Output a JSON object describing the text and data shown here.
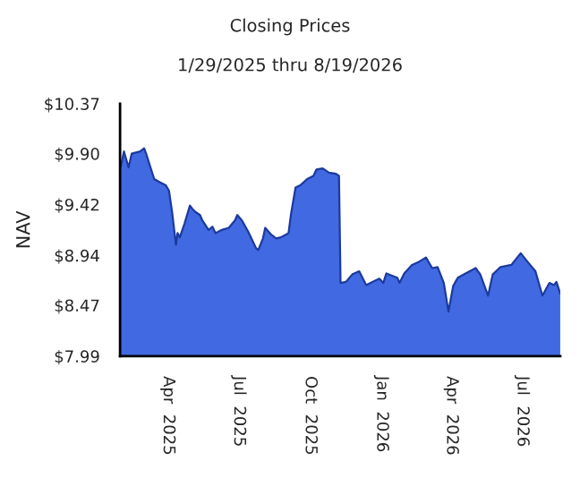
{
  "chart_data": {
    "type": "area",
    "title": "Closing Prices",
    "subtitle": "1/29/2025 thru 8/19/2026",
    "ylabel": "NAV",
    "x": [
      "2025-01-30",
      "2025-02-03",
      "2025-02-09",
      "2025-02-13",
      "2025-02-24",
      "2025-03-01",
      "2025-03-04",
      "2025-03-14",
      "2025-03-21",
      "2025-03-29",
      "2025-04-02",
      "2025-04-06",
      "2025-04-11",
      "2025-04-13",
      "2025-04-16",
      "2025-04-22",
      "2025-04-29",
      "2025-05-02",
      "2025-05-06",
      "2025-05-12",
      "2025-05-15",
      "2025-05-23",
      "2025-05-28",
      "2025-06-01",
      "2025-06-09",
      "2025-06-18",
      "2025-06-26",
      "2025-06-29",
      "2025-07-05",
      "2025-07-14",
      "2025-07-23",
      "2025-07-26",
      "2025-08-01",
      "2025-08-04",
      "2025-08-11",
      "2025-08-18",
      "2025-08-24",
      "2025-09-03",
      "2025-09-06",
      "2025-09-12",
      "2025-09-18",
      "2025-09-27",
      "2025-10-05",
      "2025-10-09",
      "2025-10-17",
      "2025-10-25",
      "2025-11-03",
      "2025-11-07",
      "2025-11-09",
      "2025-11-16",
      "2025-11-24",
      "2025-12-03",
      "2025-12-12",
      "2025-12-20",
      "2025-12-29",
      "2026-01-03",
      "2026-01-07",
      "2026-01-21",
      "2026-01-24",
      "2026-01-30",
      "2026-02-09",
      "2026-02-18",
      "2026-02-27",
      "2026-03-07",
      "2026-03-14",
      "2026-03-22",
      "2026-03-28",
      "2026-04-03",
      "2026-04-09",
      "2026-04-19",
      "2026-05-02",
      "2026-05-08",
      "2026-05-18",
      "2026-05-24",
      "2026-06-03",
      "2026-06-17",
      "2026-06-29",
      "2026-07-09",
      "2026-07-18",
      "2026-07-27",
      "2026-08-05",
      "2026-08-11",
      "2026-08-14",
      "2026-08-19"
    ],
    "series": [
      {
        "color": "#4169e1",
        "values": [
          9.78,
          9.92,
          9.77,
          9.9,
          9.92,
          9.95,
          9.89,
          9.66,
          9.63,
          9.6,
          9.55,
          9.35,
          9.04,
          9.15,
          9.11,
          9.24,
          9.41,
          9.38,
          9.35,
          9.32,
          9.27,
          9.18,
          9.21,
          9.15,
          9.18,
          9.2,
          9.27,
          9.32,
          9.27,
          9.15,
          9.01,
          8.99,
          9.1,
          9.2,
          9.14,
          9.1,
          9.11,
          9.15,
          9.32,
          9.58,
          9.6,
          9.66,
          9.69,
          9.75,
          9.76,
          9.72,
          9.71,
          9.69,
          8.68,
          8.69,
          8.76,
          8.79,
          8.66,
          8.69,
          8.72,
          8.68,
          8.77,
          8.73,
          8.68,
          8.77,
          8.85,
          8.88,
          8.92,
          8.82,
          8.83,
          8.68,
          8.41,
          8.65,
          8.73,
          8.77,
          8.82,
          8.76,
          8.56,
          8.76,
          8.83,
          8.85,
          8.96,
          8.87,
          8.79,
          8.56,
          8.68,
          8.66,
          8.69,
          8.58
        ]
      }
    ],
    "xlim": [
      "2025-01-29",
      "2026-08-19"
    ],
    "xticks": [
      {
        "value": "2025-04-01",
        "label": "Apr  2025"
      },
      {
        "value": "2025-07-01",
        "label": "Jul  2025"
      },
      {
        "value": "2025-10-01",
        "label": "Oct  2025"
      },
      {
        "value": "2026-01-01",
        "label": "Jan  2026"
      },
      {
        "value": "2026-04-01",
        "label": "Apr  2026"
      },
      {
        "value": "2026-07-01",
        "label": "Jul  2026"
      }
    ],
    "ylim": [
      7.99,
      10.37
    ],
    "yticks": [
      {
        "value": 7.99,
        "label": "$7.99"
      },
      {
        "value": 8.47,
        "label": "$8.47"
      },
      {
        "value": 8.94,
        "label": "$8.94"
      },
      {
        "value": 9.42,
        "label": "$9.42"
      },
      {
        "value": 9.9,
        "label": "$9.90"
      },
      {
        "value": 10.37,
        "label": "$10.37"
      }
    ],
    "grid": false,
    "legend": false
  }
}
